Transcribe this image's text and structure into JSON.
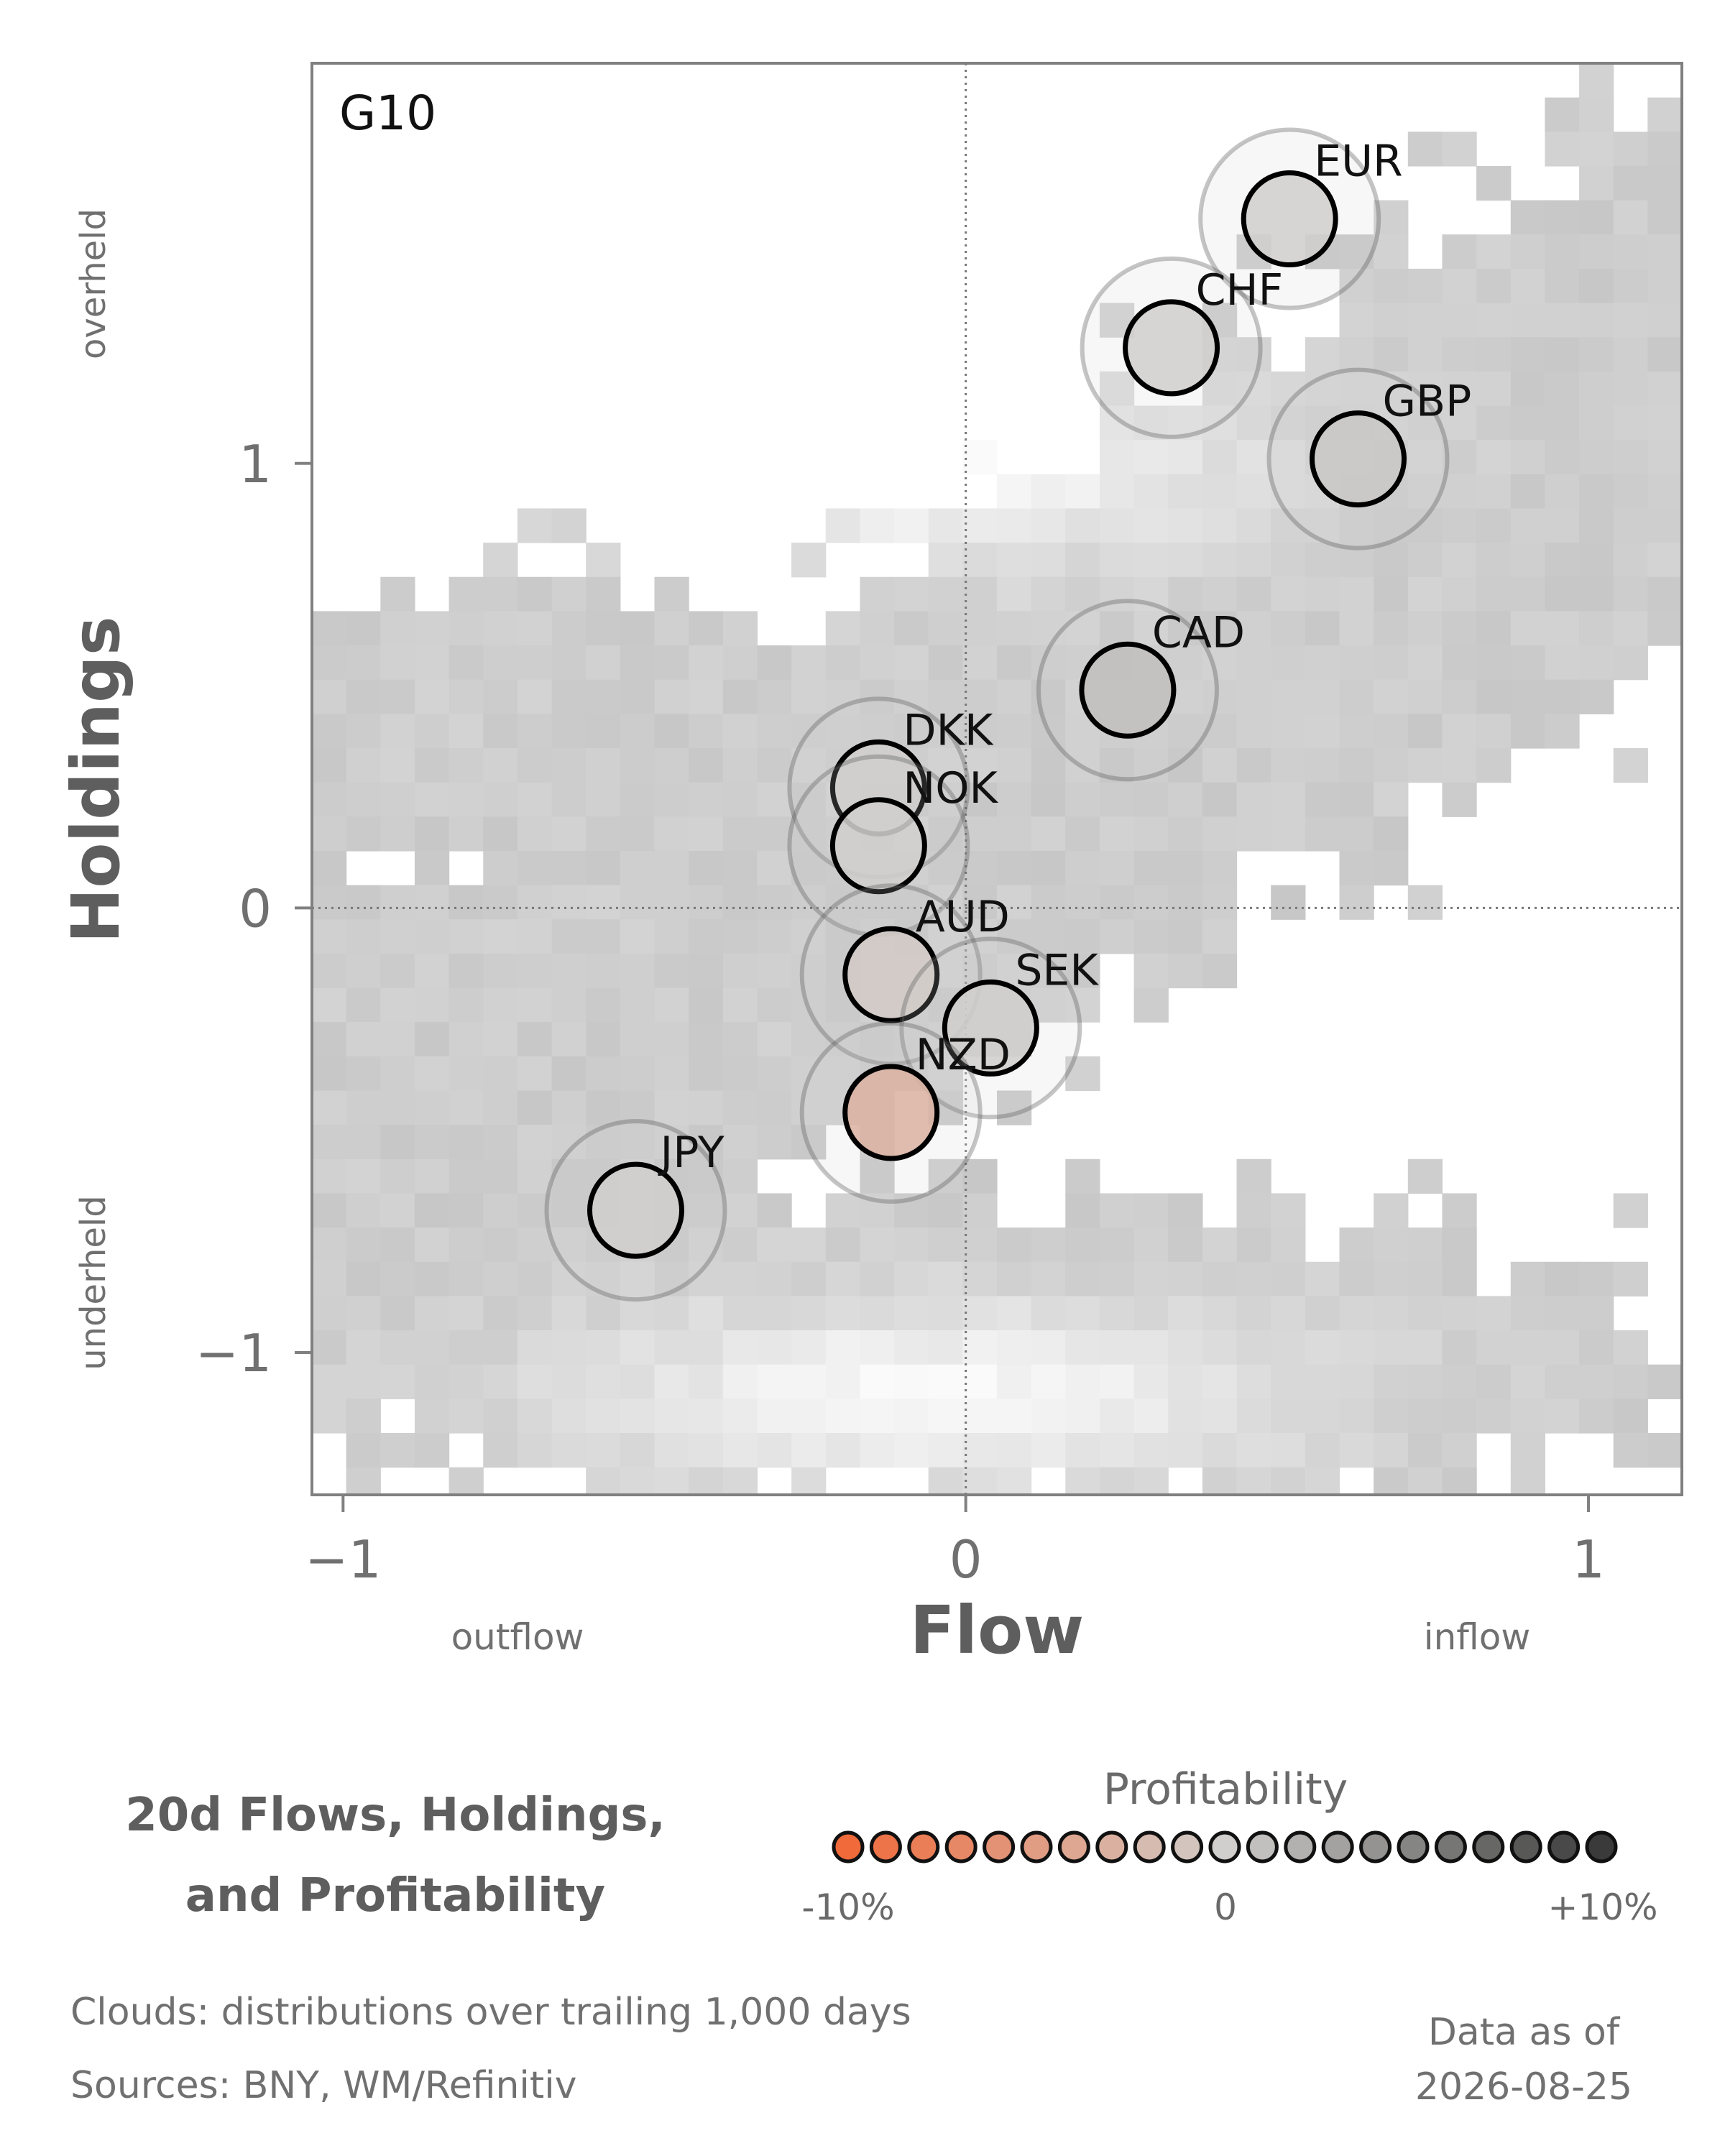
{
  "chart_data": {
    "type": "scatter",
    "panel_label": "G10",
    "xlabel": "Flow",
    "ylabel": "Holdings",
    "x_range": [
      -1.05,
      1.15
    ],
    "y_range": [
      -1.32,
      1.9
    ],
    "x_ticks": [
      -1,
      0,
      1
    ],
    "x_tick_labels": [
      "−1",
      "0",
      "1"
    ],
    "y_ticks": [
      -1,
      0,
      1
    ],
    "y_tick_labels": [
      "−1",
      "0",
      "1"
    ],
    "x_annotations": {
      "low": "outflow",
      "high": "inflow"
    },
    "y_annotations": {
      "low": "underheld",
      "high": "overheld"
    },
    "reference_lines": {
      "x": 0,
      "y": 0,
      "style": "dotted"
    },
    "background": "grey heatmap clouds of historical flow/holdings distributions",
    "grid": false,
    "points": [
      {
        "label": "EUR",
        "x": 0.52,
        "y": 1.55,
        "profitability": 0.0
      },
      {
        "label": "CHF",
        "x": 0.33,
        "y": 1.26,
        "profitability": 0.0
      },
      {
        "label": "GBP",
        "x": 0.63,
        "y": 1.01,
        "profitability": 0.5
      },
      {
        "label": "CAD",
        "x": 0.26,
        "y": 0.49,
        "profitability": 1.0
      },
      {
        "label": "DKK",
        "x": -0.14,
        "y": 0.27,
        "profitability": 0.0
      },
      {
        "label": "NOK",
        "x": -0.14,
        "y": 0.14,
        "profitability": 0.0
      },
      {
        "label": "AUD",
        "x": -0.12,
        "y": -0.15,
        "profitability": -0.5
      },
      {
        "label": "SEK",
        "x": 0.04,
        "y": -0.27,
        "profitability": 0.0
      },
      {
        "label": "NZD",
        "x": -0.12,
        "y": -0.46,
        "profitability": -3.0
      },
      {
        "label": "JPY",
        "x": -0.53,
        "y": -0.68,
        "profitability": 0.0
      }
    ],
    "colorbar": {
      "title": "Profitability",
      "range": [
        -10,
        10
      ],
      "unit": "%",
      "tick_labels": [
        "-10%",
        "0",
        "+10%"
      ],
      "colors_low_mid_high": [
        "#f06a3a",
        "#d0cfcd",
        "#3a3a3a"
      ]
    }
  },
  "footer": {
    "title_line1": "20d Flows, Holdings,",
    "title_line2": "and Profitability",
    "clouds_note": "Clouds:  distributions over trailing 1,000 days",
    "sources_note": "Sources:  BNY, WM/Refinitiv",
    "as_of_label": "Data as of",
    "as_of_date": "2026-08-25"
  }
}
